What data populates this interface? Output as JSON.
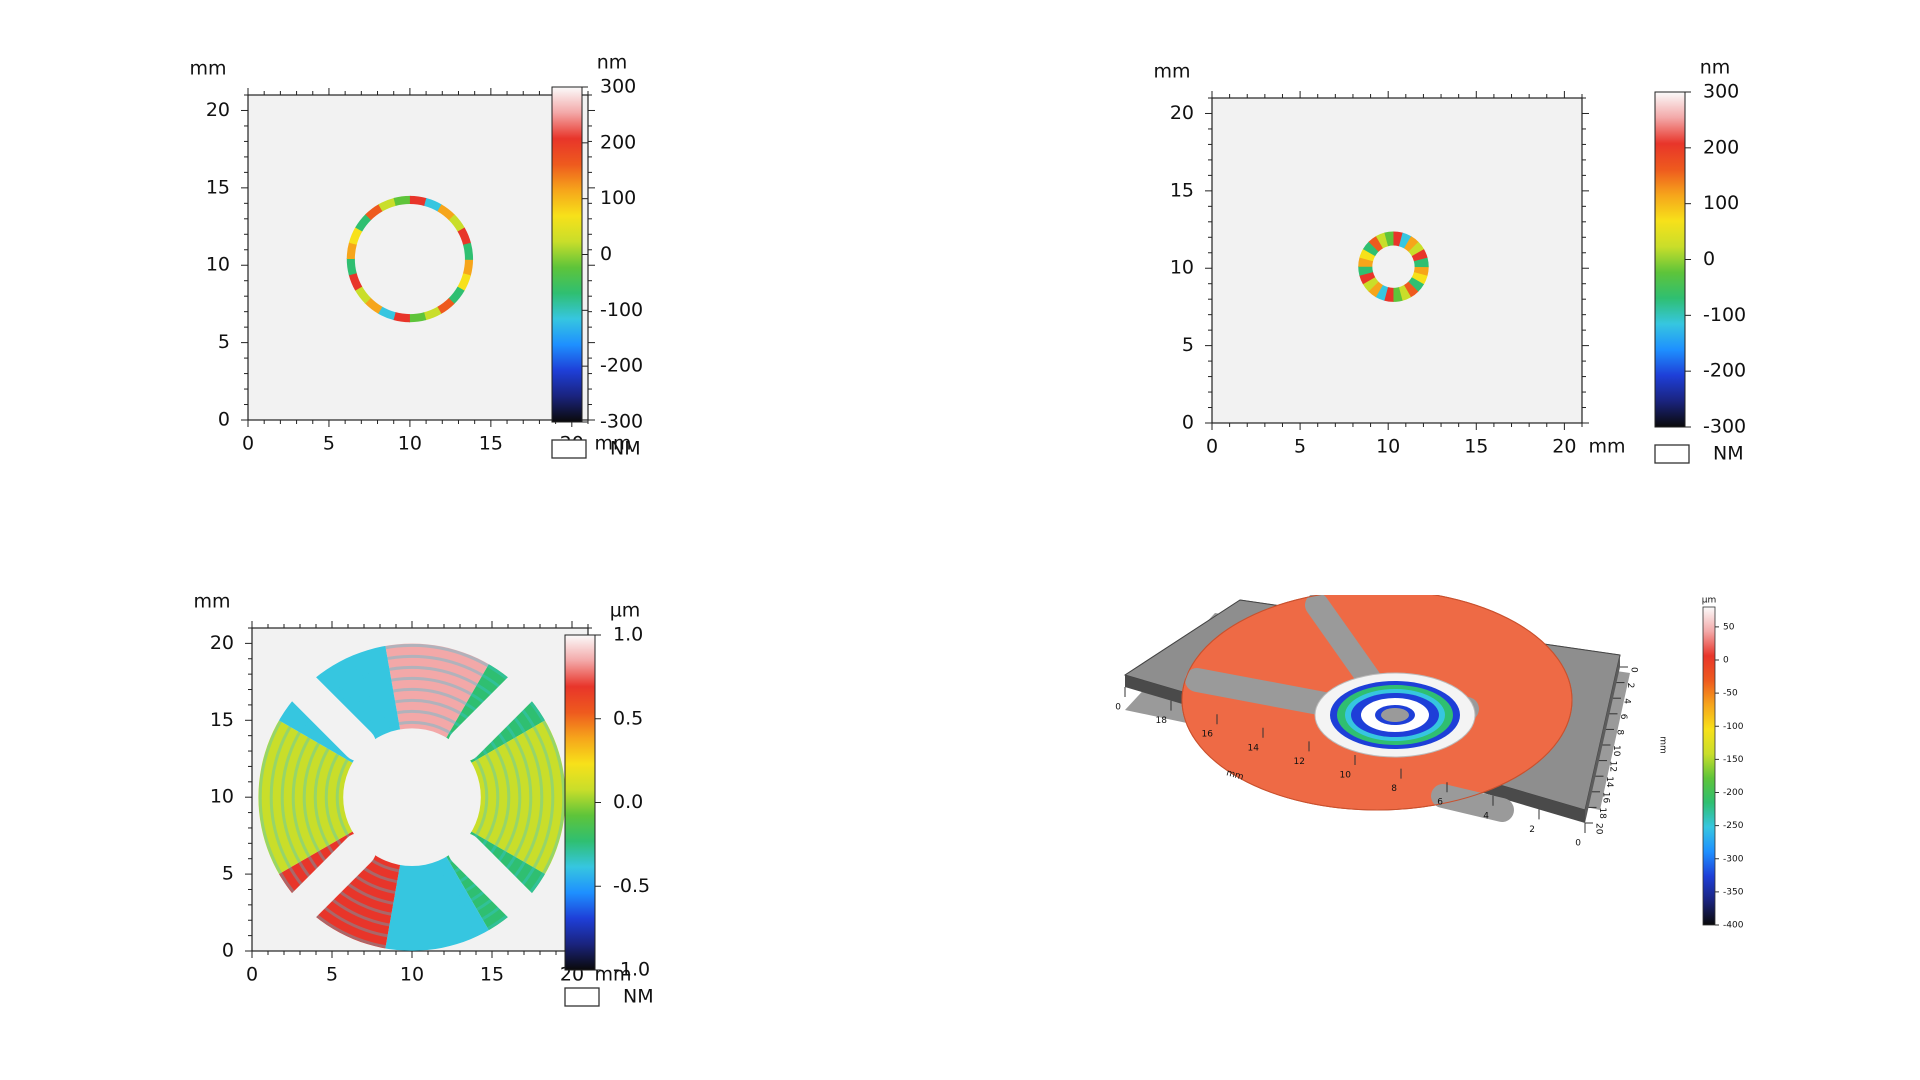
{
  "colormap": [
    "#0a0a0a",
    "#1a237e",
    "#1e3fd8",
    "#1e90ff",
    "#36c6e0",
    "#2fbf71",
    "#5ec43a",
    "#c9de2a",
    "#f7e11a",
    "#f6a51b",
    "#ee5a1e",
    "#e8352a",
    "#f3a8a8",
    "#fbfbfb"
  ],
  "chart_data": [
    {
      "type": "heatmap",
      "panel": "top-left",
      "xlabel": "mm",
      "ylabel": "mm",
      "xlim": [
        0,
        21
      ],
      "ylim": [
        0,
        21
      ],
      "xticks": [
        "0",
        "5",
        "10",
        "15",
        "20"
      ],
      "yticks": [
        "0",
        "5",
        "10",
        "15",
        "20"
      ],
      "shape": "thin ring",
      "ring": {
        "center": [
          10,
          10.4
        ],
        "outer_radius": 3.9,
        "inner_radius": 3.4
      },
      "colorbar": {
        "unit": "nm",
        "range": [
          -300,
          300
        ],
        "ticks": [
          "300",
          "200",
          "100",
          "0",
          "-100",
          "-200",
          "-300"
        ],
        "nm_label": "NM"
      }
    },
    {
      "type": "heatmap",
      "panel": "top-right",
      "xlabel": "mm",
      "ylabel": "mm",
      "xlim": [
        0,
        21
      ],
      "ylim": [
        0,
        21
      ],
      "xticks": [
        "0",
        "5",
        "10",
        "15",
        "20"
      ],
      "yticks": [
        "0",
        "5",
        "10",
        "15",
        "20"
      ],
      "shape": "annulus",
      "ring": {
        "center": [
          10.3,
          10.1
        ],
        "outer_radius": 2.0,
        "inner_radius": 1.2
      },
      "colorbar": {
        "unit": "nm",
        "range": [
          -300,
          300
        ],
        "ticks": [
          "300",
          "200",
          "100",
          "0",
          "-100",
          "-200",
          "-300"
        ],
        "nm_label": "NM"
      }
    },
    {
      "type": "heatmap",
      "panel": "bottom-left",
      "xlabel": "mm",
      "ylabel": "mm",
      "xlim": [
        0,
        21
      ],
      "ylim": [
        0,
        21
      ],
      "xticks": [
        "0",
        "5",
        "10",
        "15",
        "20"
      ],
      "yticks": [
        "0",
        "5",
        "10",
        "15",
        "20"
      ],
      "shape": "slotted washer",
      "washer": {
        "center": [
          10,
          10
        ],
        "outer_radius": 9.6,
        "inner_radius": 4.3,
        "slots": 4
      },
      "colorbar": {
        "unit": "µm",
        "range": [
          -1.0,
          1.0
        ],
        "ticks": [
          "1.0",
          "0.5",
          "0.0",
          "-0.5",
          "-1.0"
        ],
        "nm_label": "NM"
      }
    },
    {
      "type": "surface-3d",
      "panel": "bottom-right",
      "axis_label": "mm",
      "front_axis_ticks": [
        "20",
        "18",
        "16",
        "14",
        "12",
        "10",
        "8",
        "6",
        "4",
        "2",
        "0"
      ],
      "right_axis_ticks": [
        "0",
        "2",
        "4",
        "6",
        "8",
        "10",
        "12",
        "14",
        "16",
        "18",
        "20"
      ],
      "colorbar": {
        "unit": "µm",
        "ticks": [
          "50",
          "0",
          "-50",
          "-100",
          "-150",
          "-200",
          "-250",
          "-300",
          "-350",
          "-400"
        ],
        "range": [
          -400,
          80
        ]
      }
    }
  ]
}
